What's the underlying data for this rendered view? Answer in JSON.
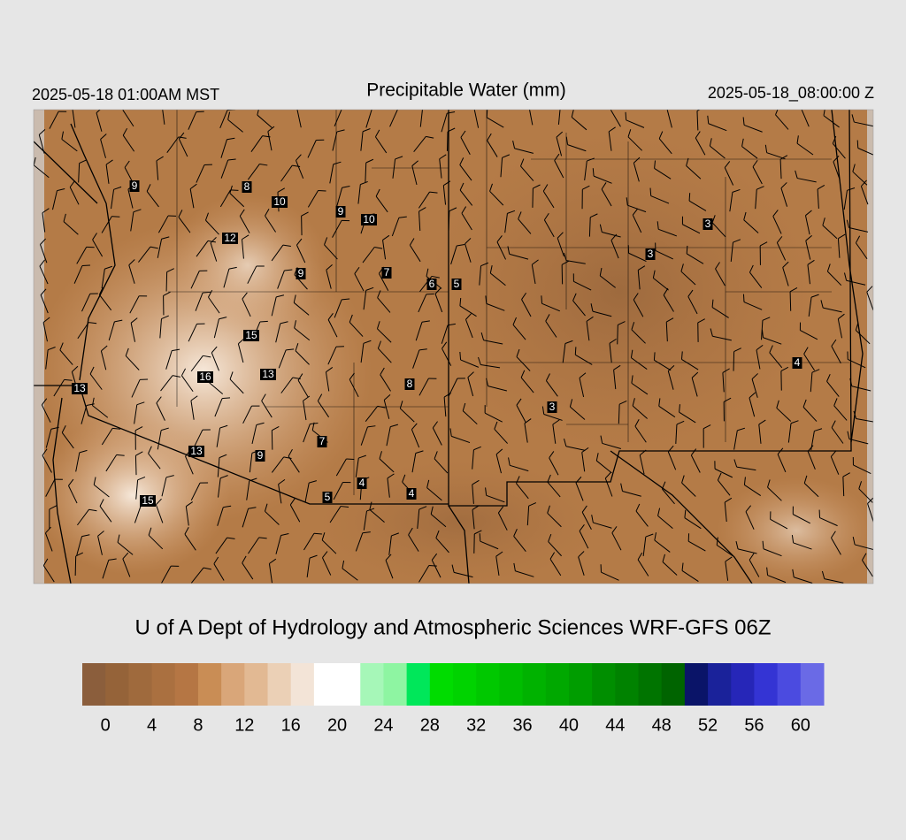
{
  "header": {
    "left": "2025-05-18 01:00AM MST",
    "title": "Precipitable Water (mm)",
    "right": "2025-05-18_08:00:00 Z"
  },
  "map": {
    "stations": [
      9,
      8,
      10,
      9,
      10,
      12,
      9,
      7,
      6,
      5,
      3,
      3,
      15,
      16,
      13,
      8,
      13,
      3,
      4,
      7,
      13,
      9,
      4,
      5,
      4,
      15
    ]
  },
  "credit": "U of A Dept of Hydrology and Atmospheric Sciences WRF-GFS 06Z",
  "colorbar": {
    "lim": [
      -2,
      62
    ],
    "ticks": [
      0,
      4,
      8,
      12,
      16,
      20,
      24,
      28,
      32,
      36,
      40,
      44,
      48,
      52,
      56,
      60
    ],
    "colors": [
      "#8b5e3c",
      "#956339",
      "#9f6a3d",
      "#aa7040",
      "#b57644",
      "#c98d55",
      "#d9a679",
      "#e2b993",
      "#ebd0b6",
      "#f3e4d7",
      "#ffffff",
      "#ffffff",
      "#a6f7b8",
      "#8ef5a2",
      "#00e75a",
      "#00dc00",
      "#00d300",
      "#00c800",
      "#00bd00",
      "#00b200",
      "#00a800",
      "#009d00",
      "#008e00",
      "#008200",
      "#007400",
      "#006400",
      "#0a1468",
      "#1a229a",
      "#2626b8",
      "#3434d4",
      "#4b4be0",
      "#6a6ae6"
    ]
  }
}
